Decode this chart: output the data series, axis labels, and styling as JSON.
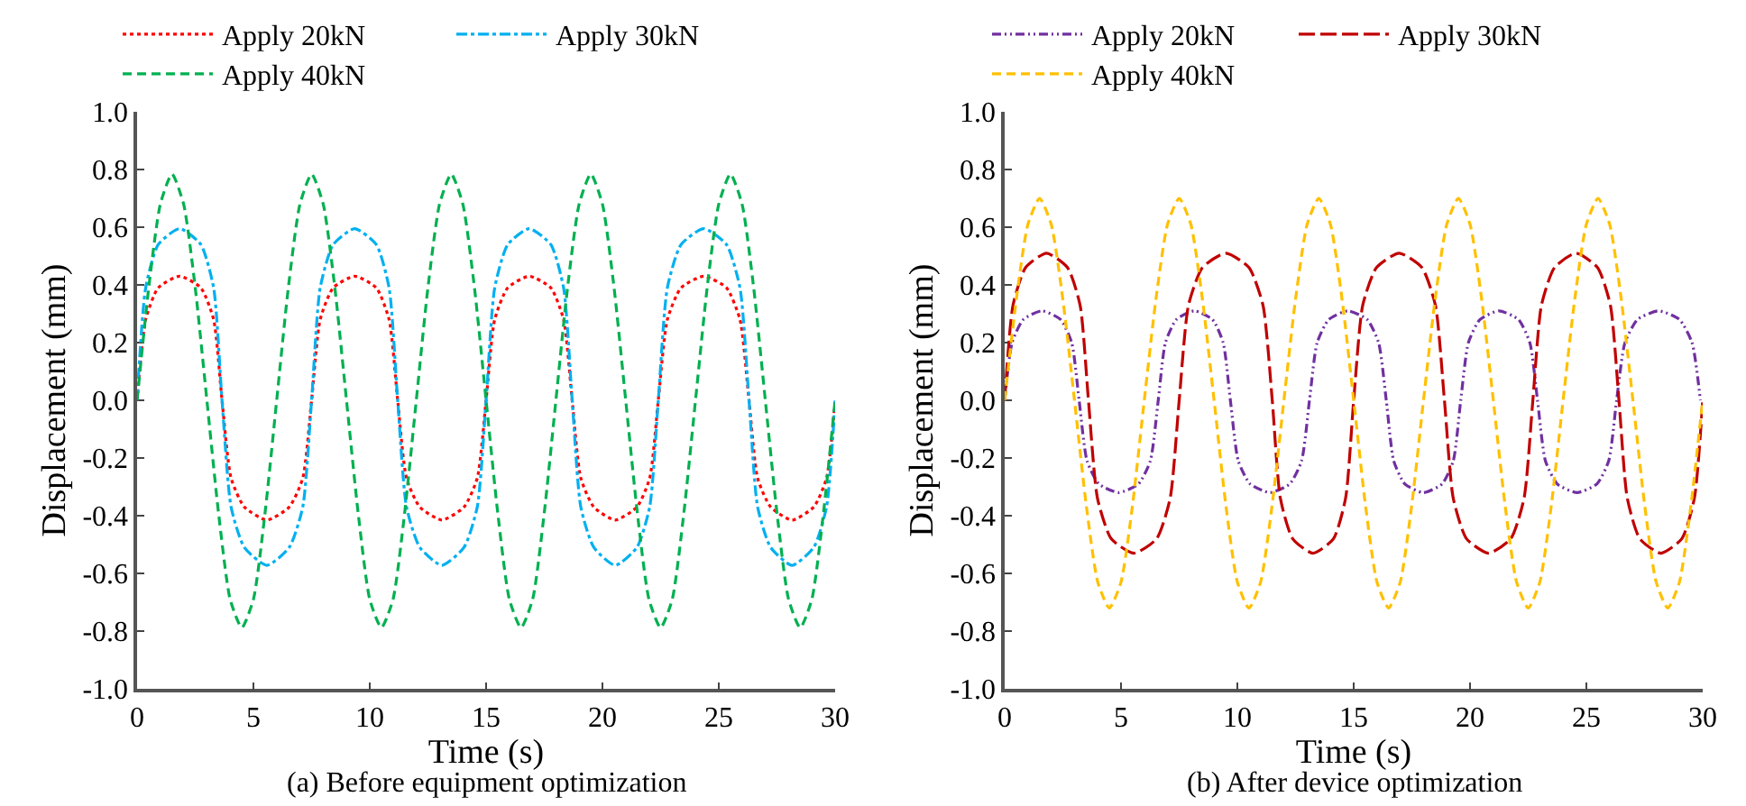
{
  "chart_data": [
    {
      "type": "line",
      "title": "(a) Before equipment optimization",
      "xlabel": "Time (s)",
      "ylabel": "Displacement (mm)",
      "xlim": [
        0,
        30
      ],
      "xticks": [
        0,
        5,
        10,
        15,
        20,
        25,
        30
      ],
      "ylim": [
        -1,
        1
      ],
      "yticks": [
        {
          "value": -1,
          "label": "-1.0"
        },
        -0.8,
        -0.6,
        -0.4,
        -0.2,
        {
          "value": 0,
          "label": "0.0"
        },
        0.2,
        0.4,
        0.6,
        0.8,
        {
          "value": 1,
          "label": "1.0"
        }
      ],
      "legend": "top",
      "series": [
        {
          "name": "Apply 20kN",
          "color": "#ff0000",
          "line_style": "dotted",
          "x": [
            0,
            0.37,
            0.91,
            1.83,
            2.74,
            3.29,
            3.65,
            4.04,
            4.61,
            5.58,
            6.54,
            7.12,
            7.5,
            7.87,
            8.43,
            9.35,
            10.28,
            10.83,
            11.2,
            11.58,
            12.15,
            13.1,
            14.05,
            14.62,
            15.0,
            15.37,
            15.93,
            16.85,
            17.78,
            18.33,
            18.7,
            19.07,
            19.63,
            20.55,
            21.48,
            22.03,
            22.4,
            22.79,
            23.38,
            24.35,
            25.33,
            25.91,
            26.3,
            26.67,
            27.23,
            28.15,
            29.08,
            29.63,
            30
          ],
          "values": [
            0,
            0.28,
            0.39,
            0.43,
            0.39,
            0.28,
            0,
            -0.27,
            -0.37,
            -0.415,
            -0.37,
            -0.27,
            0,
            0.28,
            0.39,
            0.43,
            0.39,
            0.28,
            0,
            -0.27,
            -0.37,
            -0.415,
            -0.37,
            -0.27,
            0,
            0.28,
            0.39,
            0.43,
            0.39,
            0.28,
            0,
            -0.27,
            -0.37,
            -0.415,
            -0.37,
            -0.27,
            0,
            0.28,
            0.39,
            0.43,
            0.39,
            0.28,
            0,
            -0.27,
            -0.37,
            -0.415,
            -0.37,
            -0.27,
            0
          ]
        },
        {
          "name": "Apply 30kN",
          "color": "#00b0f0",
          "line_style": "dashdot",
          "x": [
            0,
            0.37,
            0.91,
            1.83,
            2.74,
            3.29,
            3.65,
            4.04,
            4.61,
            5.58,
            6.54,
            7.12,
            7.5,
            7.87,
            8.43,
            9.35,
            10.28,
            10.83,
            11.2,
            11.58,
            12.15,
            13.1,
            14.05,
            14.62,
            15.0,
            15.37,
            15.93,
            16.85,
            17.78,
            18.33,
            18.7,
            19.07,
            19.63,
            20.55,
            21.48,
            22.03,
            22.4,
            22.79,
            23.38,
            24.35,
            25.33,
            25.91,
            26.3,
            26.67,
            27.23,
            28.15,
            29.08,
            29.63,
            30
          ],
          "values": [
            0,
            0.39,
            0.54,
            0.595,
            0.54,
            0.39,
            0,
            -0.37,
            -0.51,
            -0.572,
            -0.51,
            -0.37,
            0,
            0.39,
            0.54,
            0.595,
            0.54,
            0.39,
            0,
            -0.37,
            -0.51,
            -0.572,
            -0.51,
            -0.37,
            0,
            0.39,
            0.54,
            0.595,
            0.54,
            0.39,
            0,
            -0.37,
            -0.51,
            -0.572,
            -0.51,
            -0.37,
            0,
            0.39,
            0.54,
            0.595,
            0.54,
            0.39,
            0,
            -0.37,
            -0.51,
            -0.572,
            -0.51,
            -0.37,
            0
          ]
        },
        {
          "name": "Apply 40kN",
          "color": "#00b050",
          "line_style": "dashed",
          "x": [
            0,
            0.5,
            1,
            1.5,
            2,
            2.5,
            3,
            3.5,
            4,
            4.5,
            5,
            5.5,
            6,
            6.5,
            7,
            7.5,
            8,
            8.5,
            9,
            9.5,
            10,
            10.5,
            11,
            11.5,
            12,
            12.5,
            13,
            13.5,
            14,
            14.5,
            15,
            15.5,
            16,
            16.5,
            17,
            17.5,
            18,
            18.5,
            19,
            19.5,
            20,
            20.5,
            21,
            21.5,
            22,
            22.5,
            23,
            23.5,
            24,
            24.5,
            25,
            25.5,
            26,
            26.5,
            27,
            27.5,
            28,
            28.5,
            29,
            29.5,
            30
          ],
          "values": [
            0,
            0.39,
            0.68,
            0.784,
            0.68,
            0.39,
            0,
            -0.39,
            -0.69,
            -0.788,
            -0.69,
            -0.39,
            0,
            0.39,
            0.68,
            0.784,
            0.68,
            0.39,
            0,
            -0.39,
            -0.69,
            -0.788,
            -0.69,
            -0.39,
            0,
            0.39,
            0.68,
            0.784,
            0.68,
            0.39,
            0,
            -0.39,
            -0.69,
            -0.788,
            -0.69,
            -0.39,
            0,
            0.39,
            0.68,
            0.784,
            0.68,
            0.39,
            0,
            -0.39,
            -0.69,
            -0.788,
            -0.69,
            -0.39,
            0,
            0.39,
            0.68,
            0.784,
            0.68,
            0.39,
            0,
            -0.39,
            -0.69,
            -0.788,
            -0.69,
            -0.39,
            0
          ]
        }
      ]
    },
    {
      "type": "line",
      "title": "(b) After device optimization",
      "xlabel": "Time (s)",
      "ylabel": "Displacement (mm)",
      "xlim": [
        0,
        30
      ],
      "xticks": [
        0,
        5,
        10,
        15,
        20,
        25,
        30
      ],
      "ylim": [
        -1,
        1
      ],
      "yticks": [
        {
          "value": -1,
          "label": "-1.0"
        },
        -0.8,
        -0.6,
        -0.4,
        -0.2,
        {
          "value": 0,
          "label": "0.0"
        },
        0.2,
        0.4,
        0.6,
        0.8,
        {
          "value": 1,
          "label": "1.0"
        }
      ],
      "legend": "top",
      "series": [
        {
          "name": "Apply 20kN",
          "color": "#7030a0",
          "line_style": "dashdotdot",
          "x": [
            0,
            0.32,
            0.8,
            1.6,
            2.4,
            2.88,
            3.2,
            3.54,
            4.05,
            4.9,
            5.75,
            6.26,
            6.6,
            6.91,
            7.38,
            8.15,
            8.93,
            9.39,
            9.7,
            10.04,
            10.55,
            11.4,
            12.25,
            12.76,
            13.1,
            13.43,
            13.93,
            14.75,
            15.58,
            16.07,
            16.4,
            16.72,
            17.2,
            18.0,
            18.8,
            19.28,
            19.6,
            19.93,
            20.43,
            21.25,
            22.08,
            22.57,
            22.9,
            23.24,
            23.75,
            24.6,
            25.45,
            25.96,
            26.3,
            26.66,
            27.2,
            28.1,
            29.0,
            29.54,
            29.9
          ],
          "values": [
            0,
            0.2,
            0.28,
            0.31,
            0.28,
            0.2,
            0,
            -0.21,
            -0.29,
            -0.32,
            -0.29,
            -0.21,
            0,
            0.2,
            0.28,
            0.31,
            0.28,
            0.2,
            0,
            -0.21,
            -0.29,
            -0.32,
            -0.29,
            -0.21,
            0,
            0.2,
            0.28,
            0.31,
            0.28,
            0.2,
            0,
            -0.21,
            -0.29,
            -0.32,
            -0.29,
            -0.21,
            0,
            0.2,
            0.28,
            0.31,
            0.28,
            0.2,
            0,
            -0.21,
            -0.29,
            -0.32,
            -0.29,
            -0.21,
            0,
            0.2,
            0.28,
            0.31,
            0.28,
            0.2,
            0
          ]
        },
        {
          "name": "Apply 30kN",
          "color": "#c00000",
          "line_style": "longdash",
          "x": [
            0,
            0.36,
            0.9,
            1.8,
            2.7,
            3.24,
            3.6,
            3.99,
            4.58,
            5.55,
            6.53,
            7.11,
            7.5,
            7.9,
            8.5,
            9.5,
            10.5,
            11.1,
            11.5,
            11.85,
            12.38,
            13.25,
            14.13,
            14.65,
            15.0,
            15.39,
            15.98,
            16.95,
            17.93,
            18.51,
            18.9,
            19.28,
            19.85,
            20.8,
            21.75,
            22.32,
            22.7,
            23.07,
            23.63,
            24.55,
            25.48,
            26.03,
            26.4,
            26.76,
            27.3,
            28.2,
            29.1,
            29.64,
            30
          ],
          "values": [
            0,
            0.33,
            0.46,
            0.51,
            0.46,
            0.33,
            0,
            -0.34,
            -0.48,
            -0.53,
            -0.48,
            -0.34,
            0,
            0.33,
            0.46,
            0.51,
            0.46,
            0.33,
            0,
            -0.34,
            -0.48,
            -0.53,
            -0.48,
            -0.34,
            0,
            0.33,
            0.46,
            0.51,
            0.46,
            0.33,
            0,
            -0.34,
            -0.48,
            -0.53,
            -0.48,
            -0.34,
            0,
            0.33,
            0.46,
            0.51,
            0.46,
            0.33,
            0,
            -0.34,
            -0.48,
            -0.53,
            -0.48,
            -0.34,
            0
          ]
        },
        {
          "name": "Apply 40kN",
          "color": "#ffc000",
          "line_style": "dashed",
          "x": [
            0,
            0.5,
            1,
            1.5,
            2,
            2.5,
            3,
            3.5,
            4,
            4.5,
            5,
            5.5,
            6,
            6.5,
            7,
            7.5,
            8,
            8.5,
            9,
            9.5,
            10,
            10.5,
            11,
            11.5,
            12,
            12.5,
            13,
            13.5,
            14,
            14.5,
            15,
            15.5,
            16,
            16.5,
            17,
            17.5,
            18,
            18.5,
            19,
            19.5,
            20,
            20.5,
            21,
            21.5,
            22,
            22.5,
            23,
            23.5,
            24,
            24.5,
            25,
            25.5,
            26,
            26.5,
            27,
            27.5,
            28,
            28.5,
            29,
            29.5,
            30
          ],
          "values": [
            0,
            0.35,
            0.61,
            0.7,
            0.61,
            0.35,
            0,
            -0.36,
            -0.63,
            -0.72,
            -0.63,
            -0.36,
            0,
            0.35,
            0.61,
            0.7,
            0.61,
            0.35,
            0,
            -0.36,
            -0.63,
            -0.72,
            -0.63,
            -0.36,
            0,
            0.35,
            0.61,
            0.7,
            0.61,
            0.35,
            0,
            -0.36,
            -0.63,
            -0.72,
            -0.63,
            -0.36,
            0,
            0.35,
            0.61,
            0.7,
            0.61,
            0.35,
            0,
            -0.36,
            -0.63,
            -0.72,
            -0.63,
            -0.36,
            0,
            0.35,
            0.61,
            0.7,
            0.61,
            0.35,
            0,
            -0.36,
            -0.63,
            -0.72,
            -0.63,
            -0.36,
            0
          ]
        }
      ]
    }
  ]
}
